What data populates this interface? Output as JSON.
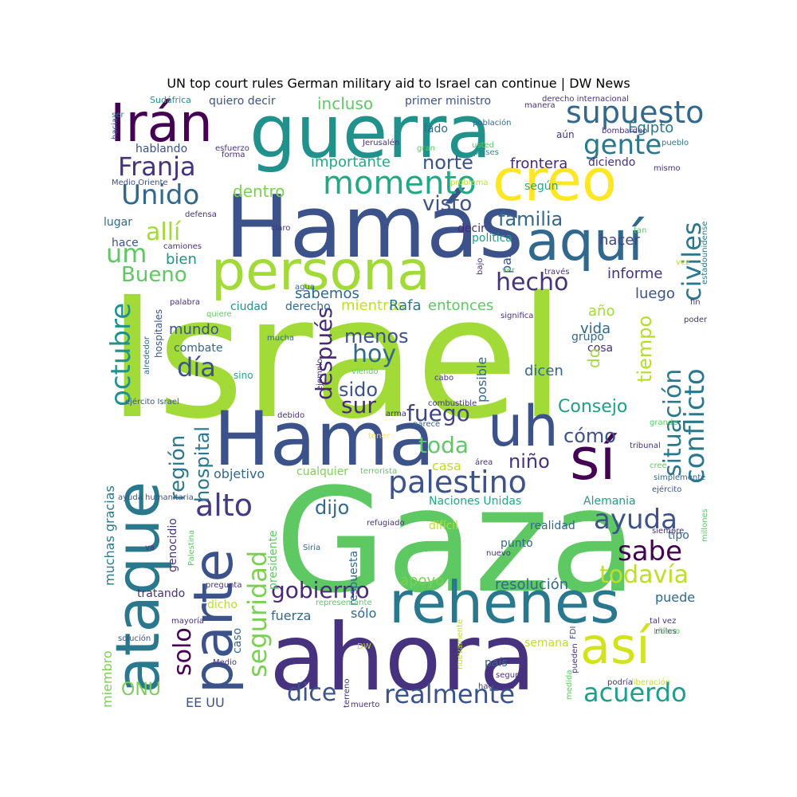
{
  "title": "UN top court rules German military aid to Israel can continue | DW News",
  "words": [
    {
      "text": "Israel",
      "color": "#a2da37"
    },
    {
      "text": "Gaza",
      "color": "#5ec962"
    },
    {
      "text": "Hamás",
      "color": "#3b528b"
    },
    {
      "text": "ahora",
      "color": "#46327e"
    },
    {
      "text": "guerra",
      "color": "#21918c"
    },
    {
      "text": "Hama",
      "color": "#3b528b"
    },
    {
      "text": "ataque",
      "color": "#2a788e"
    },
    {
      "text": "persona",
      "color": "#a2da37"
    },
    {
      "text": "rehenes",
      "color": "#2a788e"
    },
    {
      "text": "creo",
      "color": "#fde725"
    },
    {
      "text": "parte",
      "color": "#3b528b"
    },
    {
      "text": "sí",
      "color": "#440154"
    },
    {
      "text": "así",
      "color": "#d2e21b"
    },
    {
      "text": "uh",
      "color": "#3b528b"
    },
    {
      "text": "aquí",
      "color": "#31688e"
    },
    {
      "text": "Irán",
      "color": "#440154"
    },
    {
      "text": "supuesto",
      "color": "#31688e"
    },
    {
      "text": "momento",
      "color": "#22a884"
    },
    {
      "text": "palestino",
      "color": "#3b528b"
    },
    {
      "text": "Unido",
      "color": "#31688e"
    },
    {
      "text": "seguridad",
      "color": "#7ad151"
    },
    {
      "text": "realmente",
      "color": "#3b528b"
    },
    {
      "text": "acuerdo",
      "color": "#1f9e89"
    },
    {
      "text": "gobierno",
      "color": "#482878"
    },
    {
      "text": "ayuda",
      "color": "#3b528b"
    },
    {
      "text": "sabe",
      "color": "#440154"
    },
    {
      "text": "alto",
      "color": "#443983"
    },
    {
      "text": "todavía",
      "color": "#bddf26"
    },
    {
      "text": "civiles",
      "color": "#2a788e"
    },
    {
      "text": "octubre",
      "color": "#21918c"
    },
    {
      "text": "conflicto",
      "color": "#2a788e"
    },
    {
      "text": "situación",
      "color": "#2a788e"
    },
    {
      "text": "gente",
      "color": "#2a788e"
    },
    {
      "text": "Franja",
      "color": "#46327e"
    },
    {
      "text": "hecho",
      "color": "#46327e"
    },
    {
      "text": "toda",
      "color": "#5ec962"
    },
    {
      "text": "solo",
      "color": "#440154"
    },
    {
      "text": "dice",
      "color": "#3b528b"
    },
    {
      "text": "hoy",
      "color": "#31688e"
    },
    {
      "text": "sur",
      "color": "#482878"
    },
    {
      "text": "fuego",
      "color": "#414487"
    },
    {
      "text": "día",
      "color": "#3b528b"
    },
    {
      "text": "después",
      "color": "#482878"
    },
    {
      "text": "región",
      "color": "#2a788e"
    },
    {
      "text": "hospital",
      "color": "#2a788e"
    },
    {
      "text": "allí",
      "color": "#a2da37"
    },
    {
      "text": "um",
      "color": "#5ec962"
    },
    {
      "text": "Bueno",
      "color": "#5ec962"
    },
    {
      "text": "norte",
      "color": "#3b528b"
    },
    {
      "text": "visto",
      "color": "#3b528b"
    },
    {
      "text": "familia",
      "color": "#31688e"
    },
    {
      "text": "tiempo",
      "color": "#b5de2b"
    },
    {
      "text": "Consejo",
      "color": "#1f9e89"
    },
    {
      "text": "cómo",
      "color": "#3b528b"
    },
    {
      "text": "niño",
      "color": "#46327e"
    },
    {
      "text": "dijo",
      "color": "#31688e"
    },
    {
      "text": "menos",
      "color": "#3b528b"
    },
    {
      "text": "sido",
      "color": "#3b528b"
    },
    {
      "text": "dentro",
      "color": "#7ad151"
    },
    {
      "text": "incluso",
      "color": "#5ec962"
    },
    {
      "text": "importante",
      "color": "#22a884"
    },
    {
      "text": "sabemos",
      "color": "#31688e"
    },
    {
      "text": "mientras",
      "color": "#bddf26"
    },
    {
      "text": "Rafa",
      "color": "#2a788e"
    },
    {
      "text": "entonces",
      "color": "#5ec962"
    },
    {
      "text": "hacer",
      "color": "#414487"
    },
    {
      "text": "informe",
      "color": "#46327e"
    },
    {
      "text": "luego",
      "color": "#3b528b"
    },
    {
      "text": "año",
      "color": "#a2da37"
    },
    {
      "text": "vida",
      "color": "#31688e"
    },
    {
      "text": "grupo",
      "color": "#31688e"
    },
    {
      "text": "cosa",
      "color": "#46327e"
    },
    {
      "text": "dicen",
      "color": "#31688e"
    },
    {
      "text": "do",
      "color": "#a2da37"
    },
    {
      "text": "Egipto",
      "color": "#2a788e"
    },
    {
      "text": "frontera",
      "color": "#482878"
    },
    {
      "text": "diciendo",
      "color": "#46327e"
    },
    {
      "text": "según",
      "color": "#22a884"
    },
    {
      "text": "paz",
      "color": "#3b528b"
    },
    {
      "text": "política",
      "color": "#1f9e89"
    },
    {
      "text": "decir",
      "color": "#482878"
    },
    {
      "text": "bien",
      "color": "#21918c"
    },
    {
      "text": "mundo",
      "color": "#3b528b"
    },
    {
      "text": "combate",
      "color": "#31688e"
    },
    {
      "text": "ciudad",
      "color": "#21918c"
    },
    {
      "text": "derecho",
      "color": "#31688e"
    },
    {
      "text": "lugar",
      "color": "#31688e"
    },
    {
      "text": "hace",
      "color": "#3b528b"
    },
    {
      "text": "quiero decir",
      "color": "#3b528b"
    },
    {
      "text": "primer ministro",
      "color": "#3b528b"
    },
    {
      "text": "lado",
      "color": "#31688e"
    },
    {
      "text": "hablando",
      "color": "#3b528b"
    },
    {
      "text": "objetivo",
      "color": "#31688e"
    },
    {
      "text": "cualquier",
      "color": "#7ad151"
    },
    {
      "text": "casa",
      "color": "#bddf26"
    },
    {
      "text": "posible",
      "color": "#31688e"
    },
    {
      "text": "Naciones Unidas",
      "color": "#22a884"
    },
    {
      "text": "Alemania",
      "color": "#1f9e89"
    },
    {
      "text": "realidad",
      "color": "#31688e"
    },
    {
      "text": "difícil",
      "color": "#bddf26"
    },
    {
      "text": "punto",
      "color": "#31688e"
    },
    {
      "text": "resolución",
      "color": "#31688e"
    },
    {
      "text": "apoyo",
      "color": "#7ad151"
    },
    {
      "text": "puede",
      "color": "#31688e"
    },
    {
      "text": "fuerza",
      "color": "#31688e"
    },
    {
      "text": "sólo",
      "color": "#31688e"
    },
    {
      "text": "tipo",
      "color": "#31688e"
    },
    {
      "text": "ONU",
      "color": "#7ad151"
    },
    {
      "text": "EE UU",
      "color": "#3b528b"
    },
    {
      "text": "muchas gracias",
      "color": "#2a788e"
    },
    {
      "text": "miembro",
      "color": "#7ad151"
    },
    {
      "text": "caso",
      "color": "#31688e"
    },
    {
      "text": "genocidio",
      "color": "#46327e"
    },
    {
      "text": "presidente",
      "color": "#5ec962"
    },
    {
      "text": "respuesta",
      "color": "#31688e"
    },
    {
      "text": "tratando",
      "color": "#46327e"
    },
    {
      "text": "dicho",
      "color": "#bddf26"
    },
    {
      "text": "Sudáfrica",
      "color": "#21918c"
    },
    {
      "text": "ser",
      "color": "#2a788e"
    },
    {
      "text": "hacia",
      "color": "#3b528b"
    },
    {
      "text": "esfuerzo",
      "color": "#46327e"
    },
    {
      "text": "forma",
      "color": "#46327e"
    },
    {
      "text": "Jerusalén",
      "color": "#46327e"
    },
    {
      "text": "gran",
      "color": "#5ec962"
    },
    {
      "text": "población",
      "color": "#31688e"
    },
    {
      "text": "aún",
      "color": "#46327e"
    },
    {
      "text": "usted",
      "color": "#5ec962"
    },
    {
      "text": "países",
      "color": "#21918c"
    },
    {
      "text": "bombardeo",
      "color": "#46327e"
    },
    {
      "text": "pueblo",
      "color": "#2a788e"
    },
    {
      "text": "mismo",
      "color": "#46327e"
    },
    {
      "text": "derecho internacional",
      "color": "#46327e"
    },
    {
      "text": "manera",
      "color": "#46327e"
    },
    {
      "text": "Medio Oriente",
      "color": "#3b528b"
    },
    {
      "text": "problema",
      "color": "#bddf26"
    },
    {
      "text": "defensa",
      "color": "#46327e"
    },
    {
      "text": "claro",
      "color": "#46327e"
    },
    {
      "text": "camiones",
      "color": "#46327e"
    },
    {
      "text": "estadounidense",
      "color": "#2a788e"
    },
    {
      "text": "tan",
      "color": "#5ec962"
    },
    {
      "text": "vez",
      "color": "#bddf26"
    },
    {
      "text": "bajo",
      "color": "#46327e"
    },
    {
      "text": "ver",
      "color": "#5ec962"
    },
    {
      "text": "través",
      "color": "#46327e"
    },
    {
      "text": "fin",
      "color": "#46327e"
    },
    {
      "text": "poder",
      "color": "#46327e"
    },
    {
      "text": "agua",
      "color": "#31688e"
    },
    {
      "text": "significa",
      "color": "#46327e"
    },
    {
      "text": "palabra",
      "color": "#46327e"
    },
    {
      "text": "quiere",
      "color": "#5ec962"
    },
    {
      "text": "hospitales",
      "color": "#3b528b"
    },
    {
      "text": "alrededor",
      "color": "#31688e"
    },
    {
      "text": "mucha",
      "color": "#31688e"
    },
    {
      "text": "sino",
      "color": "#22a884"
    },
    {
      "text": "viendo",
      "color": "#5ec962"
    },
    {
      "text": "ejemplo",
      "color": "#46327e"
    },
    {
      "text": "cabo",
      "color": "#46327e"
    },
    {
      "text": "ejército Israel",
      "color": "#3b528b"
    },
    {
      "text": "debido",
      "color": "#46327e"
    },
    {
      "text": "combustible",
      "color": "#46327e"
    },
    {
      "text": "arma",
      "color": "#46327e"
    },
    {
      "text": "grande",
      "color": "#5ec962"
    },
    {
      "text": "tener",
      "color": "#fde725"
    },
    {
      "text": "parece",
      "color": "#31688e"
    },
    {
      "text": "terrorista",
      "color": "#5ec962"
    },
    {
      "text": "área",
      "color": "#46327e"
    },
    {
      "text": "tribunal",
      "color": "#46327e"
    },
    {
      "text": "cree",
      "color": "#5ec962"
    },
    {
      "text": "simplemente",
      "color": "#31688e"
    },
    {
      "text": "ejército",
      "color": "#3b528b"
    },
    {
      "text": "millones",
      "color": "#5ec962"
    },
    {
      "text": "ayuda humanitaria",
      "color": "#3b528b"
    },
    {
      "text": "refugiado",
      "color": "#46327e"
    },
    {
      "text": "siempre",
      "color": "#46327e"
    },
    {
      "text": "Siria",
      "color": "#31688e"
    },
    {
      "text": "nuevo",
      "color": "#46327e"
    },
    {
      "text": "va",
      "color": "#46327e"
    },
    {
      "text": "Palestina",
      "color": "#5ec962"
    },
    {
      "text": "pregunta",
      "color": "#46327e"
    },
    {
      "text": "mayoría",
      "color": "#46327e"
    },
    {
      "text": "representante",
      "color": "#5ec962"
    },
    {
      "text": "tal vez",
      "color": "#46327e"
    },
    {
      "text": "miles",
      "color": "#46327e"
    },
    {
      "text": "Líbano",
      "color": "#5ec962"
    },
    {
      "text": "solución",
      "color": "#3b528b"
    },
    {
      "text": "semana",
      "color": "#bddf26"
    },
    {
      "text": "FDI",
      "color": "#3b528b"
    },
    {
      "text": "DW",
      "color": "#bddf26"
    },
    {
      "text": "nuevamente",
      "color": "#bddf26"
    },
    {
      "text": "Medio",
      "color": "#46327e"
    },
    {
      "text": "país",
      "color": "#31688e"
    },
    {
      "text": "seguro",
      "color": "#46327e"
    },
    {
      "text": "terreno",
      "color": "#46327e"
    },
    {
      "text": "haciendo",
      "color": "#46327e"
    },
    {
      "text": "pueden",
      "color": "#46327e"
    },
    {
      "text": "medida",
      "color": "#5ec962"
    },
    {
      "text": "podría",
      "color": "#46327e"
    },
    {
      "text": "liberación",
      "color": "#bddf26"
    },
    {
      "text": "muerto",
      "color": "#46327e"
    }
  ]
}
